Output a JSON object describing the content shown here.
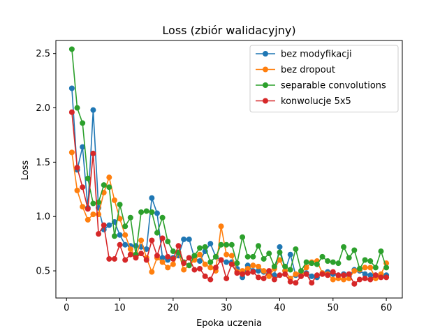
{
  "chart_data": {
    "type": "line",
    "title": "Loss (zbiór walidacyjny)",
    "xlabel": "Epoka uczenia",
    "ylabel": "Loss",
    "xlim": [
      -2,
      63
    ],
    "ylim": [
      0.25,
      2.62
    ],
    "xticks": [
      0,
      10,
      20,
      30,
      40,
      50,
      60
    ],
    "yticks": [
      0.5,
      1.0,
      1.5,
      2.0,
      2.5
    ],
    "ytick_labels": [
      "0.5",
      "1.0",
      "1.5",
      "2.0",
      "2.5"
    ],
    "grid": false,
    "legend_position": "top-right",
    "x": [
      1,
      2,
      3,
      4,
      5,
      6,
      7,
      8,
      9,
      10,
      11,
      12,
      13,
      14,
      15,
      16,
      17,
      18,
      19,
      20,
      21,
      22,
      23,
      24,
      25,
      26,
      27,
      28,
      29,
      30,
      31,
      32,
      33,
      34,
      35,
      36,
      37,
      38,
      39,
      40,
      41,
      42,
      43,
      44,
      45,
      46,
      47,
      48,
      49,
      50,
      51,
      52,
      53,
      54,
      55,
      56,
      57,
      58,
      59,
      60
    ],
    "series": [
      {
        "name": "bez modyfikacji",
        "color": "#1f77b4",
        "values": [
          2.18,
          1.43,
          1.64,
          1.08,
          1.98,
          1.08,
          0.88,
          0.92,
          0.95,
          0.83,
          0.74,
          0.73,
          0.73,
          0.72,
          0.7,
          1.17,
          1.03,
          0.62,
          0.6,
          0.62,
          0.64,
          0.79,
          0.79,
          0.62,
          0.59,
          0.68,
          0.75,
          0.63,
          0.6,
          0.58,
          0.58,
          0.52,
          0.44,
          0.55,
          0.5,
          0.5,
          0.49,
          0.47,
          0.46,
          0.72,
          0.5,
          0.65,
          0.46,
          0.48,
          0.48,
          0.45,
          0.44,
          0.48,
          0.49,
          0.47,
          0.46,
          0.47,
          0.45,
          0.51,
          0.5,
          0.47,
          0.46,
          0.46,
          0.45,
          0.46
        ]
      },
      {
        "name": "bez dropout",
        "color": "#ff7f0e",
        "values": [
          1.59,
          1.24,
          1.09,
          0.97,
          1.02,
          1.02,
          1.22,
          1.36,
          1.15,
          0.98,
          0.83,
          0.7,
          0.63,
          0.78,
          0.62,
          0.49,
          0.62,
          0.58,
          0.53,
          0.56,
          0.67,
          0.51,
          0.55,
          0.6,
          0.65,
          0.56,
          0.53,
          0.5,
          0.91,
          0.65,
          0.64,
          0.49,
          0.5,
          0.52,
          0.55,
          0.54,
          0.5,
          0.45,
          0.52,
          0.6,
          0.5,
          0.43,
          0.47,
          0.48,
          0.53,
          0.58,
          0.59,
          0.48,
          0.47,
          0.42,
          0.43,
          0.42,
          0.43,
          0.5,
          0.51,
          0.53,
          0.53,
          0.43,
          0.47,
          0.57
        ]
      },
      {
        "name": "separable convolutions",
        "color": "#2ca02c",
        "values": [
          2.54,
          2.0,
          1.86,
          1.35,
          1.12,
          1.13,
          1.29,
          1.27,
          0.82,
          1.11,
          0.91,
          0.99,
          0.65,
          1.04,
          1.05,
          1.04,
          0.85,
          0.99,
          0.77,
          0.68,
          0.67,
          0.58,
          0.55,
          0.64,
          0.71,
          0.72,
          0.58,
          0.63,
          0.74,
          0.74,
          0.74,
          0.57,
          0.81,
          0.63,
          0.63,
          0.73,
          0.61,
          0.66,
          0.54,
          0.67,
          0.54,
          0.51,
          0.7,
          0.5,
          0.58,
          0.57,
          0.56,
          0.63,
          0.59,
          0.58,
          0.57,
          0.72,
          0.62,
          0.69,
          0.52,
          0.6,
          0.59,
          0.53,
          0.68,
          0.53
        ]
      },
      {
        "name": "konwolucje 5x5",
        "color": "#d62728",
        "values": [
          1.96,
          1.45,
          1.27,
          1.07,
          1.58,
          0.84,
          0.92,
          0.61,
          0.61,
          0.74,
          0.6,
          0.65,
          0.62,
          0.66,
          0.6,
          0.78,
          0.64,
          0.8,
          0.63,
          0.61,
          0.73,
          0.57,
          0.62,
          0.51,
          0.52,
          0.45,
          0.42,
          0.53,
          0.6,
          0.43,
          0.56,
          0.48,
          0.47,
          0.48,
          0.49,
          0.44,
          0.43,
          0.5,
          0.42,
          0.46,
          0.47,
          0.4,
          0.39,
          0.45,
          0.47,
          0.39,
          0.46,
          0.47,
          0.46,
          0.49,
          0.46,
          0.46,
          0.47,
          0.38,
          0.42,
          0.43,
          0.42,
          0.46,
          0.44,
          0.44
        ]
      }
    ]
  }
}
